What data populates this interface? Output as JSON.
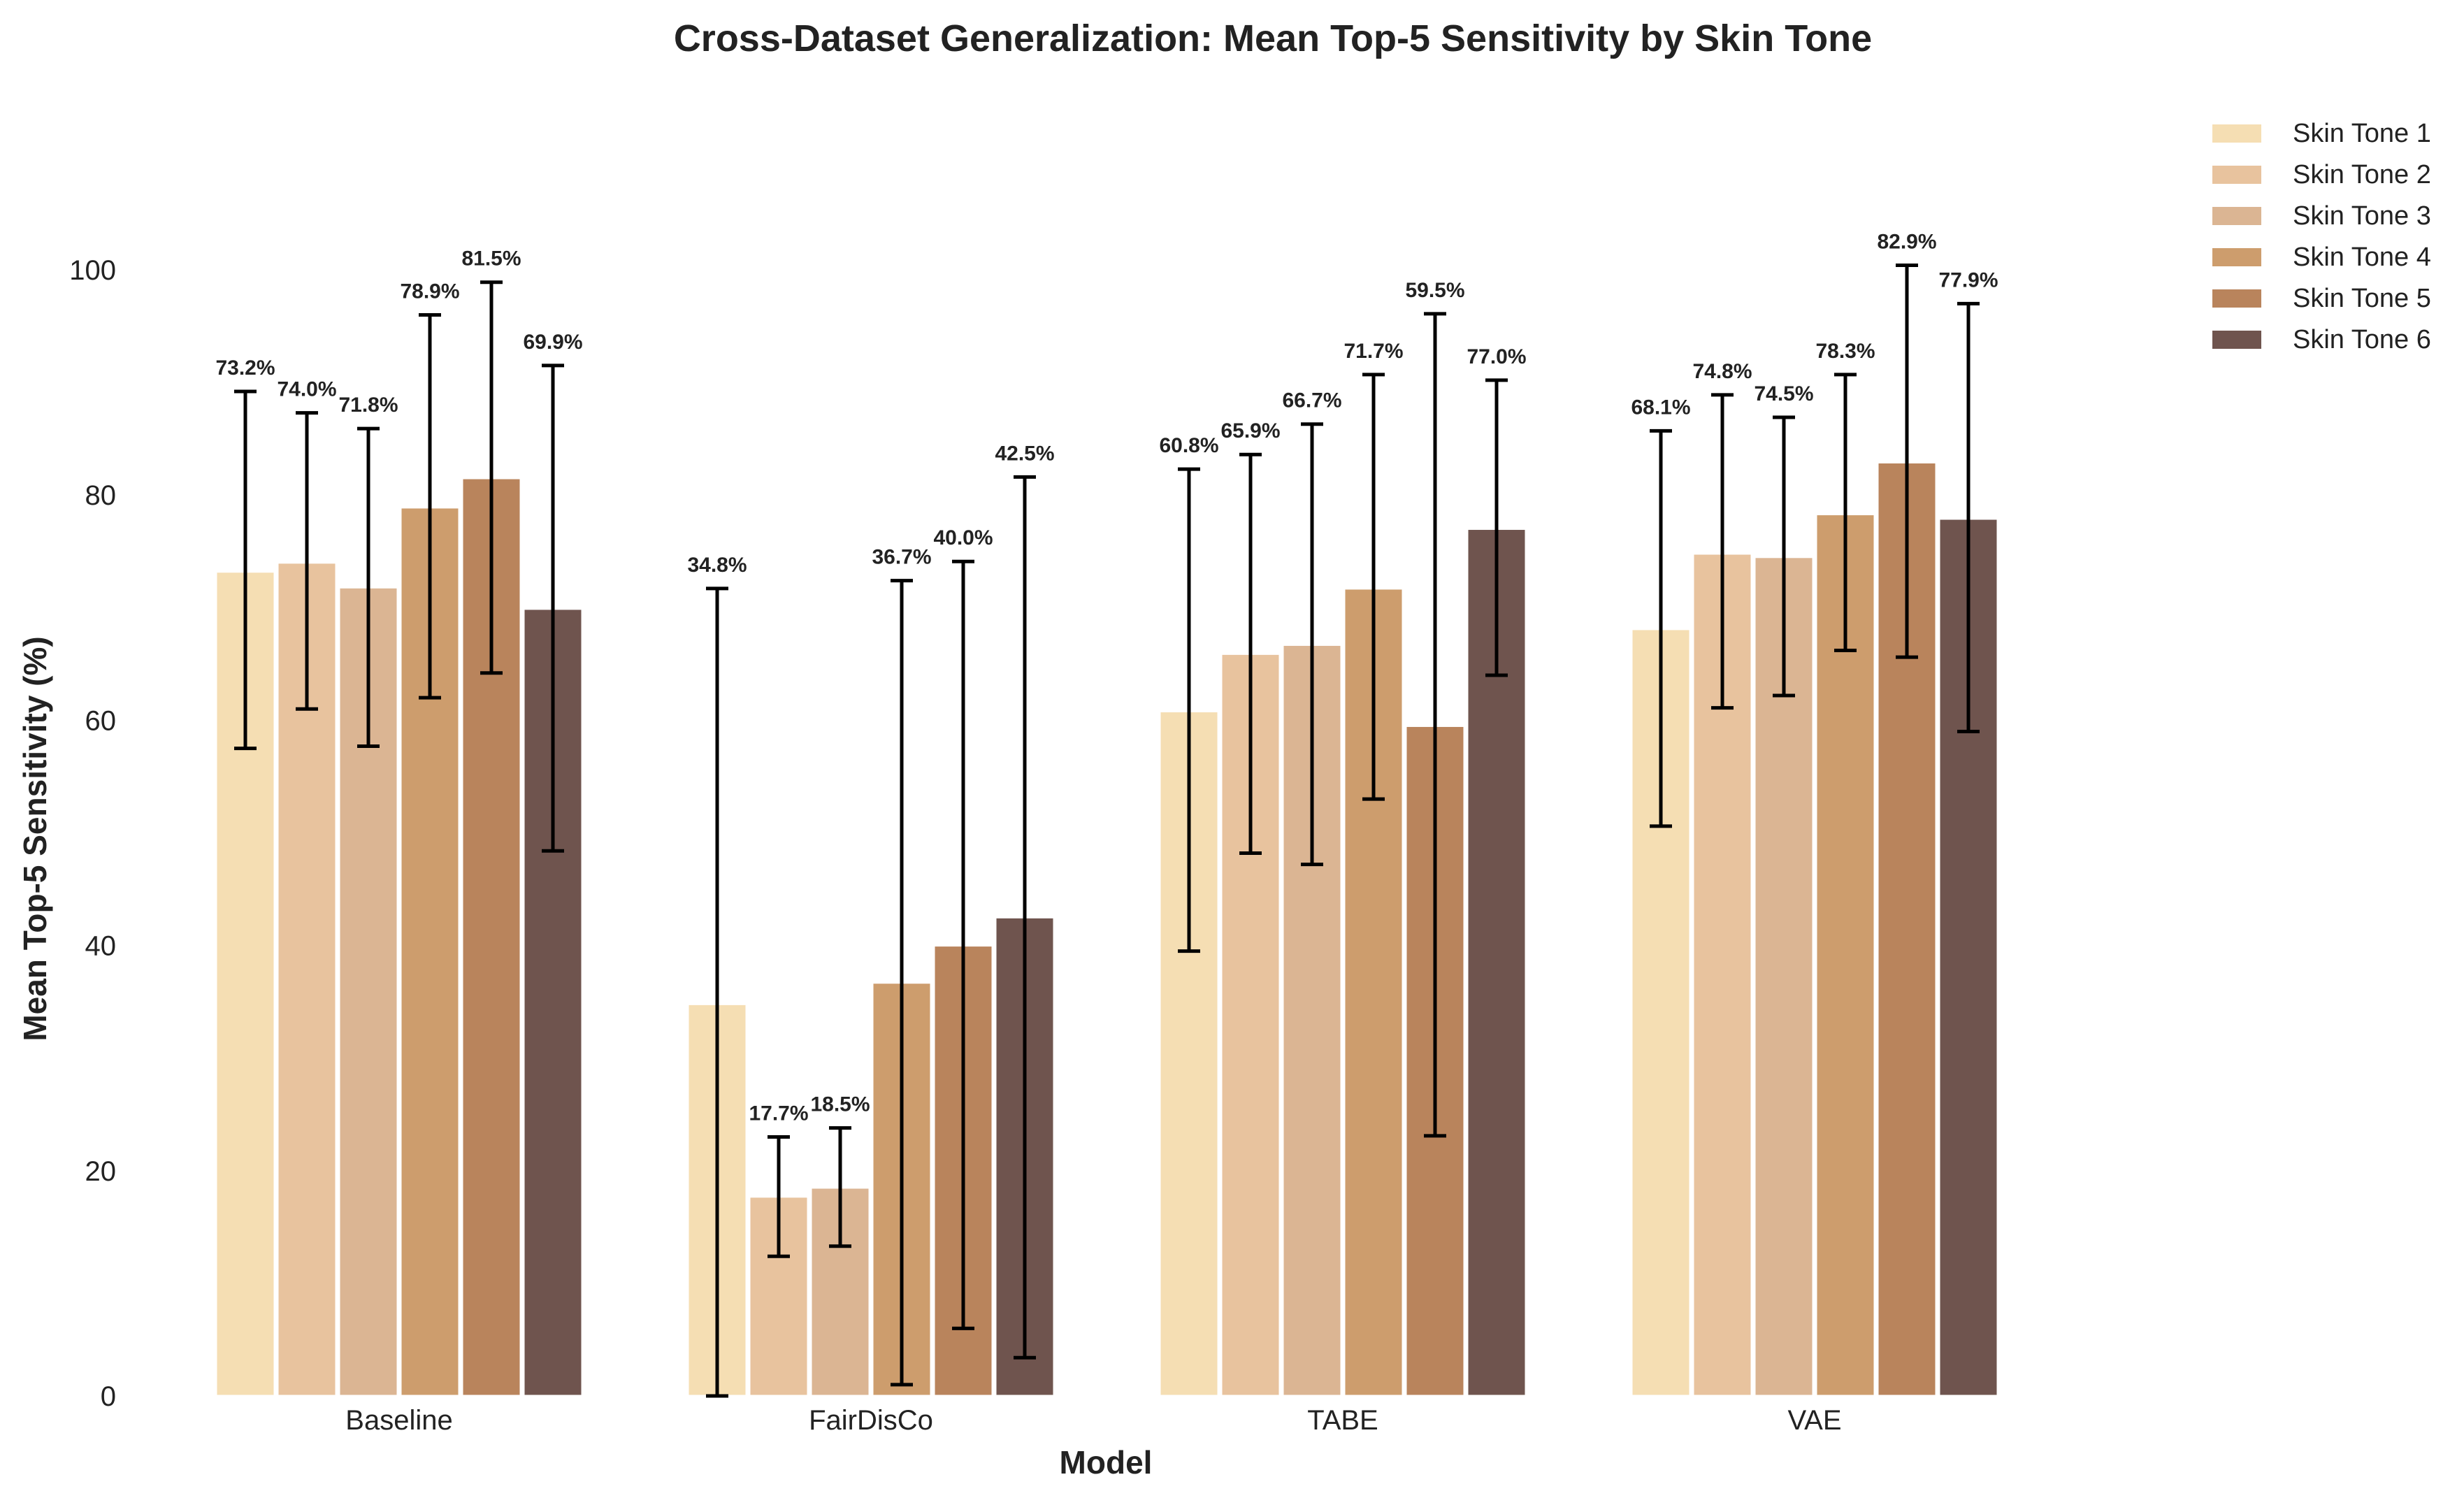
{
  "chart_data": {
    "type": "bar",
    "title": "Cross-Dataset Generalization: Mean Top-5 Sensitivity by Skin Tone",
    "xlabel": "Model",
    "ylabel": "Mean Top-5 Sensitivity (%)",
    "ylim": [
      0,
      100
    ],
    "yticks": [
      0,
      20,
      40,
      60,
      80,
      100
    ],
    "grid": false,
    "legend_position": "top-right, outside plot",
    "categories": [
      "Baseline",
      "FairDisCo",
      "TABE",
      "VAE"
    ],
    "series": [
      {
        "name": "Skin Tone 1",
        "color": "#F5DEB3",
        "values": [
          73.2,
          34.8,
          60.8,
          68.1
        ],
        "labels": [
          "73.2%",
          "34.8%",
          "60.8%",
          "68.1%"
        ],
        "err_low": [
          57.5,
          0.0,
          39.5,
          50.6
        ],
        "err_high": [
          89.2,
          71.7,
          82.3,
          85.7
        ]
      },
      {
        "name": "Skin Tone 2",
        "color": "#E8C39E",
        "values": [
          74.0,
          17.7,
          65.9,
          74.8
        ],
        "labels": [
          "74.0%",
          "17.7%",
          "65.9%",
          "74.8%"
        ],
        "err_low": [
          61.0,
          12.4,
          48.2,
          61.1
        ],
        "err_high": [
          87.3,
          23.0,
          83.6,
          88.9
        ]
      },
      {
        "name": "Skin Tone 3",
        "color": "#DBB593",
        "values": [
          71.8,
          18.5,
          66.7,
          74.5
        ],
        "labels": [
          "71.8%",
          "18.5%",
          "66.7%",
          "74.5%"
        ],
        "err_low": [
          57.7,
          13.3,
          47.2,
          62.2
        ],
        "err_high": [
          85.9,
          23.8,
          86.3,
          86.9
        ]
      },
      {
        "name": "Skin Tone 4",
        "color": "#CD9D6D",
        "values": [
          78.9,
          36.7,
          71.7,
          78.3
        ],
        "labels": [
          "78.9%",
          "36.7%",
          "71.7%",
          "78.3%"
        ],
        "err_low": [
          62.0,
          1.0,
          53.0,
          66.2
        ],
        "err_high": [
          96.0,
          72.4,
          90.7,
          90.7
        ]
      },
      {
        "name": "Skin Tone 5",
        "color": "#B9845C",
        "values": [
          81.5,
          40.0,
          59.5,
          82.9
        ],
        "labels": [
          "81.5%",
          "40.0%",
          "59.5%",
          "82.9%"
        ],
        "err_low": [
          64.2,
          6.0,
          23.1,
          65.6
        ],
        "err_high": [
          98.9,
          74.1,
          96.1,
          100.4
        ]
      },
      {
        "name": "Skin Tone 6",
        "color": "#6F544E",
        "values": [
          69.9,
          42.5,
          77.0,
          77.9
        ],
        "labels": [
          "69.9%",
          "42.5%",
          "77.0%",
          "77.9%"
        ],
        "err_low": [
          48.4,
          3.4,
          64.0,
          59.0
        ],
        "err_high": [
          91.5,
          81.6,
          90.2,
          97.0
        ]
      }
    ]
  }
}
